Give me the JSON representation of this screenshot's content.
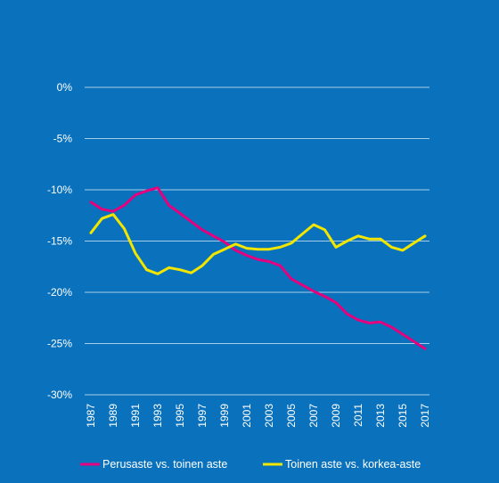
{
  "chart_data": {
    "type": "line",
    "title": "",
    "xlabel": "",
    "ylabel": "",
    "background_color": "#0a72bd",
    "grid": true,
    "legend_position": "bottom",
    "ylim": [
      -30,
      0
    ],
    "y_ticks": [
      0,
      -5,
      -10,
      -15,
      -20,
      -25,
      -30
    ],
    "y_tick_labels": [
      "0%",
      "-5%",
      "-10%",
      "-15%",
      "-20%",
      "-25%",
      "-30%"
    ],
    "x": [
      1987,
      1988,
      1989,
      1990,
      1991,
      1992,
      1993,
      1994,
      1995,
      1996,
      1997,
      1998,
      1999,
      2000,
      2001,
      2002,
      2003,
      2004,
      2005,
      2006,
      2007,
      2008,
      2009,
      2010,
      2011,
      2012,
      2013,
      2014,
      2015,
      2016,
      2017
    ],
    "x_tick_labels": [
      "1987",
      "1989",
      "1991",
      "1993",
      "1995",
      "1997",
      "1999",
      "2001",
      "2003",
      "2005",
      "2007",
      "2009",
      "2011",
      "2013",
      "2015",
      "2017"
    ],
    "series": [
      {
        "name": "Perusaste vs. toinen aste",
        "color": "#e5007e",
        "values": [
          -11.2,
          -11.9,
          -12.1,
          -11.5,
          -10.5,
          -10.1,
          -9.8,
          -11.5,
          -12.3,
          -13.1,
          -13.9,
          -14.5,
          -15.1,
          -15.9,
          -16.4,
          -16.8,
          -17.0,
          -17.4,
          -18.7,
          -19.3,
          -19.9,
          -20.4,
          -21.0,
          -22.1,
          -22.7,
          -23.0,
          -22.9,
          -23.4,
          -24.1,
          -24.8,
          -25.5
        ]
      },
      {
        "name": "Toinen aste vs. korkea-aste",
        "color": "#f2e600",
        "values": [
          -14.2,
          -12.8,
          -12.4,
          -13.8,
          -16.2,
          -17.8,
          -18.2,
          -17.6,
          -17.8,
          -18.1,
          -17.4,
          -16.3,
          -15.8,
          -15.3,
          -15.7,
          -15.8,
          -15.8,
          -15.6,
          -15.2,
          -14.3,
          -13.4,
          -13.9,
          -15.6,
          -15.0,
          -14.5,
          -14.8,
          -14.8,
          -15.6,
          -15.9,
          -15.2,
          -14.5
        ]
      }
    ]
  }
}
